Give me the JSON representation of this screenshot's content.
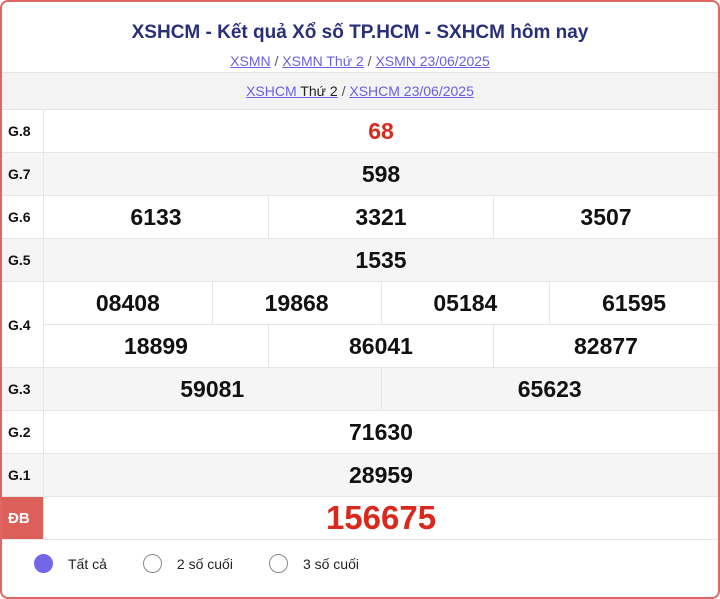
{
  "header": {
    "title": "XSHCM - Kết quả Xổ số TP.HCM - SXHCM hôm nay",
    "breadcrumbs": [
      "XSMN",
      "XSMN Thứ 2",
      "XSMN 23/06/2025"
    ],
    "sep": "/"
  },
  "subnav": {
    "link1": "XSHCM",
    "link1_plain": "Thứ 2",
    "link2": "XSHCM 23/06/2025"
  },
  "prizes": [
    {
      "label": "G.8",
      "lines": [
        [
          "68"
        ]
      ],
      "red": true
    },
    {
      "label": "G.7",
      "lines": [
        [
          "598"
        ]
      ]
    },
    {
      "label": "G.6",
      "lines": [
        [
          "6133",
          "3321",
          "3507"
        ]
      ]
    },
    {
      "label": "G.5",
      "lines": [
        [
          "1535"
        ]
      ]
    },
    {
      "label": "G.4",
      "lines": [
        [
          "08408",
          "19868",
          "05184",
          "61595"
        ],
        [
          "18899",
          "86041",
          "82877"
        ]
      ]
    },
    {
      "label": "G.3",
      "lines": [
        [
          "59081",
          "65623"
        ]
      ]
    },
    {
      "label": "G.2",
      "lines": [
        [
          "71630"
        ]
      ]
    },
    {
      "label": "G.1",
      "lines": [
        [
          "28959"
        ]
      ]
    },
    {
      "label": "ĐB",
      "lines": [
        [
          "156675"
        ]
      ],
      "red": true
    }
  ],
  "filters": {
    "options": [
      "Tất cả",
      "2 số cuối",
      "3 số cuối"
    ],
    "selected": "Tất cả"
  },
  "colors": {
    "accent": "#7466e8",
    "special": "#d9291c",
    "border": "#e06666"
  }
}
